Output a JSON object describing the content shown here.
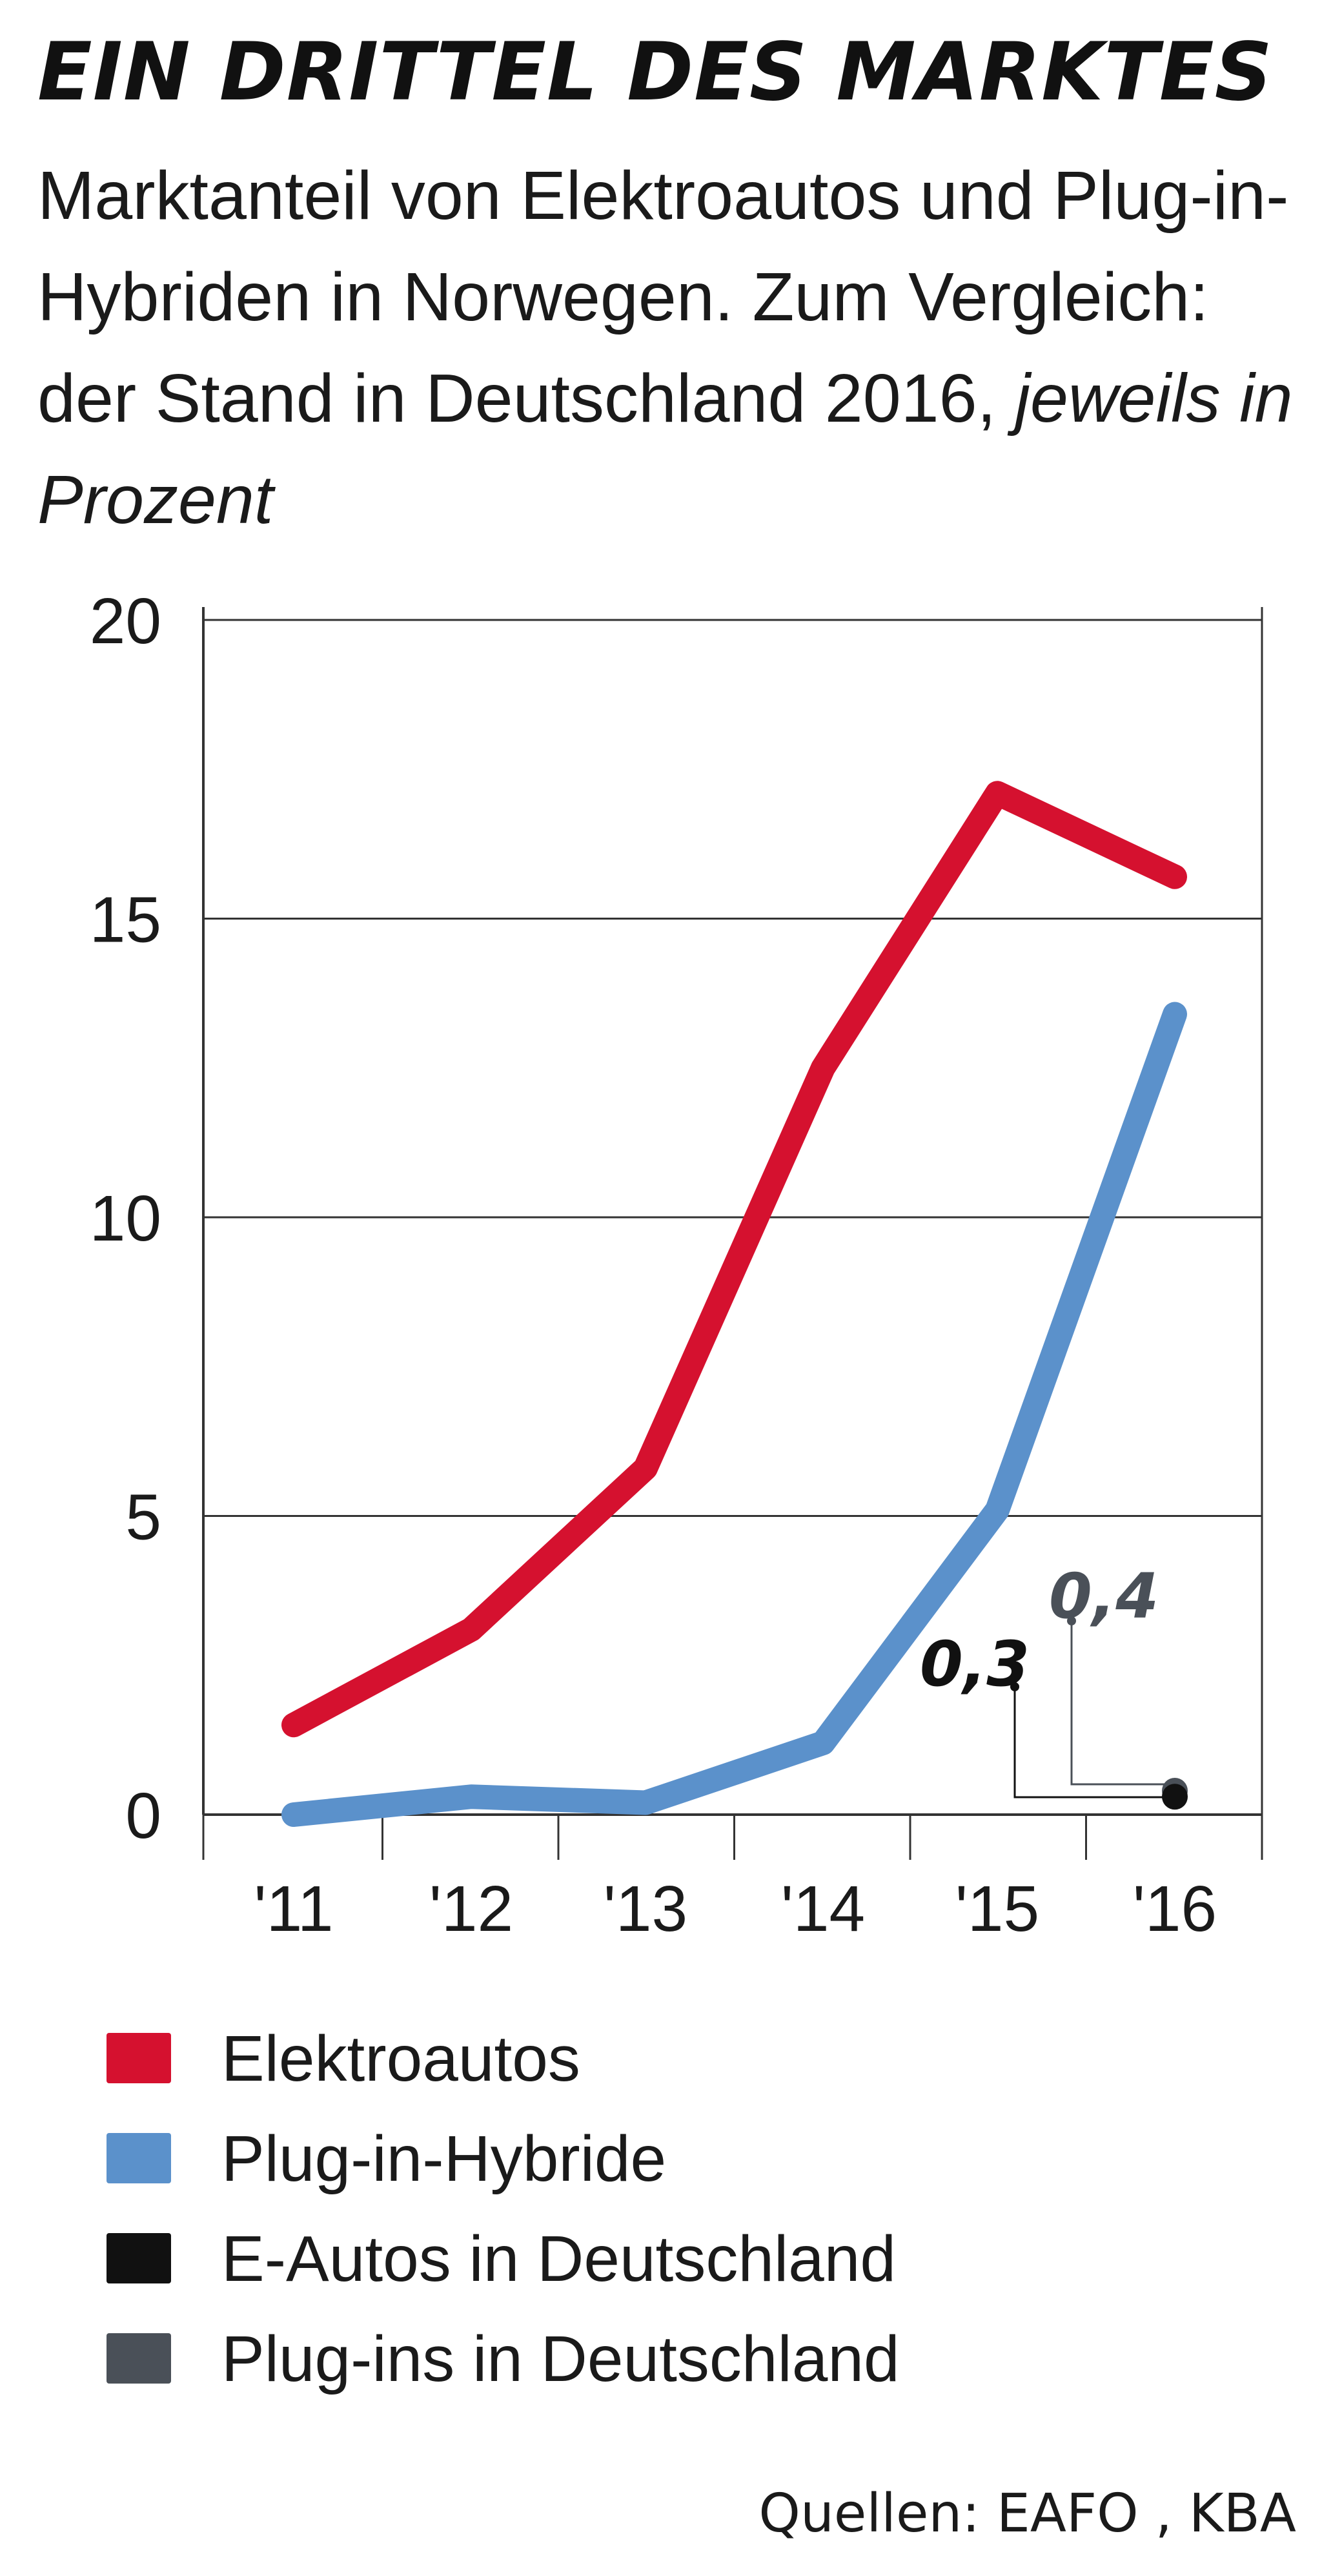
{
  "title": "EIN DRITTEL DES MARKTES",
  "subtitle_main": "Marktanteil von Elektroautos und Plug-in-Hybriden in Norwegen. Zum Vergleich: der Stand in Deutschland 2016,",
  "subtitle_italic": "jeweils in Prozent",
  "source": "Quellen: EAFO , KBA",
  "colors": {
    "elektro": "#d5112f",
    "hybrid": "#5b91cb",
    "de_eautos": "#111111",
    "de_plugins": "#4a5058",
    "grid": "#333333"
  },
  "chart_data": {
    "type": "line",
    "x": [
      "'11",
      "'12",
      "'13",
      "'14",
      "'15",
      "'16"
    ],
    "ylim": [
      0,
      20
    ],
    "yticks": [
      0,
      5,
      10,
      15,
      20
    ],
    "grid": true,
    "series": [
      {
        "name": "Elektroautos",
        "color": "#d5112f",
        "values": [
          1.5,
          3.1,
          5.8,
          12.5,
          17.1,
          15.7
        ]
      },
      {
        "name": "Plug-in-Hybride",
        "color": "#5b91cb",
        "values": [
          0.0,
          0.3,
          0.2,
          1.2,
          5.1,
          13.4
        ]
      }
    ],
    "points": [
      {
        "name": "E-Autos in Deutschland",
        "color": "#111111",
        "x": "'16",
        "value": 0.3,
        "label": "0,3"
      },
      {
        "name": "Plug-ins in Deutschland",
        "color": "#4a5058",
        "x": "'16",
        "value": 0.4,
        "label": "0,4"
      }
    ],
    "legend_position": "bottom"
  },
  "legend": [
    {
      "label": "Elektroautos",
      "color": "#d5112f"
    },
    {
      "label": "Plug-in-Hybride",
      "color": "#5b91cb"
    },
    {
      "label": "E-Autos in Deutschland",
      "color": "#111111"
    },
    {
      "label": "Plug-ins in Deutschland",
      "color": "#4a5058"
    }
  ]
}
